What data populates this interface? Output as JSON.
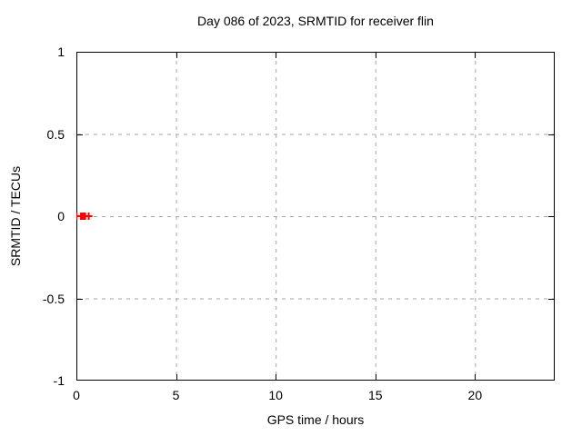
{
  "chart_data": {
    "type": "scatter",
    "title": "Day 086 of 2023, SRMTID for receiver flin",
    "xlabel": "GPS time / hours",
    "ylabel": "SRMTID / TECUs",
    "xlim": [
      0,
      24
    ],
    "ylim": [
      -1,
      1
    ],
    "xticks": [
      0,
      5,
      10,
      15,
      20
    ],
    "yticks": [
      -1,
      -0.5,
      0,
      0.5,
      1
    ],
    "grid": true,
    "grid_color": "#a6a6a6",
    "border_color": "#000000",
    "marker": "plus",
    "marker_color": "#ff0000",
    "legend": "none",
    "series": [
      {
        "name": "SRMTID",
        "x": [
          0.0,
          0.23,
          0.31,
          0.37,
          0.44,
          0.62
        ],
        "y": [
          0,
          0,
          0,
          0,
          0,
          0
        ]
      }
    ]
  }
}
